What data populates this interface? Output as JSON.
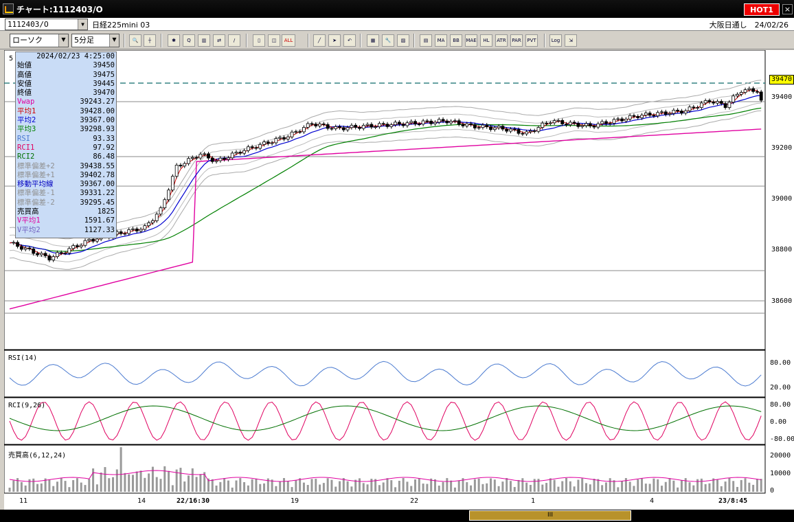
{
  "window": {
    "title": "チャート:1112403/O",
    "hot_label": "HOT1",
    "close_label": "×"
  },
  "symbol": {
    "code": "1112403/O",
    "instrument": "日経225mini 03",
    "exchange_date": "大阪日通し　24/02/26"
  },
  "toolbar": {
    "chart_type": "ローソク",
    "period": "5分足",
    "buttons": [
      "MA",
      "BB",
      "MAE",
      "HL",
      "ATR",
      "PAR",
      "PVT",
      "Log"
    ]
  },
  "info": {
    "datetime": "2024/02/23  4:25:00",
    "rows": [
      {
        "label": "始値",
        "value": "39450",
        "color": "#000"
      },
      {
        "label": "高値",
        "value": "39475",
        "color": "#000"
      },
      {
        "label": "安値",
        "value": "39445",
        "color": "#000"
      },
      {
        "label": "終値",
        "value": "39470",
        "color": "#000"
      },
      {
        "label": "Vwap",
        "value": "39243.27",
        "color": "#e000a0"
      },
      {
        "label": "平均1",
        "value": "39428.00",
        "color": "#d00000"
      },
      {
        "label": "平均2",
        "value": "39367.00",
        "color": "#0000d0"
      },
      {
        "label": "平均3",
        "value": "39298.93",
        "color": "#008000"
      },
      {
        "label": "RSI",
        "value": "93.33",
        "color": "#4a7ad0"
      },
      {
        "label": "RCI1",
        "value": "97.92",
        "color": "#e00060"
      },
      {
        "label": "RCI2",
        "value": "86.48",
        "color": "#007000"
      },
      {
        "label": "標準偏差+2",
        "value": "39438.55",
        "color": "#909090"
      },
      {
        "label": "標準偏差+1",
        "value": "39402.78",
        "color": "#909090"
      },
      {
        "label": "移動平均線",
        "value": "39367.00",
        "color": "#0000c0"
      },
      {
        "label": "標準偏差-1",
        "value": "39331.22",
        "color": "#909090"
      },
      {
        "label": "標準偏差-2",
        "value": "39295.45",
        "color": "#909090"
      },
      {
        "label": "売買高",
        "value": "1825",
        "color": "#000"
      },
      {
        "label": "V平均1",
        "value": "1591.67",
        "color": "#e000a0"
      },
      {
        "label": "V平均2",
        "value": "1127.33",
        "color": "#7060c0"
      }
    ]
  },
  "price_axis": {
    "labels": [
      "39400",
      "39200",
      "39000",
      "38800",
      "38600"
    ],
    "current": "39470"
  },
  "rsi_panel": {
    "title": "RSI(14)",
    "labels": [
      "80.00",
      "20.00"
    ]
  },
  "rci_panel": {
    "title": "RCI(9,26)",
    "labels": [
      "80.00",
      "0.00",
      "-80.00"
    ]
  },
  "vol_panel": {
    "title": "売買高(6,12,24)",
    "labels": [
      "20000",
      "10000",
      "0"
    ]
  },
  "x_axis": [
    "11",
    "14",
    "22/16:30",
    "19",
    "22",
    "1",
    "4",
    "23/8:45"
  ],
  "panel_tag": "5",
  "scroll_thumb": "III",
  "colors": {
    "ma_short": "#d00000",
    "ma_mid": "#0000d0",
    "ma_long": "#008000",
    "vwap": "#e000a0",
    "rsi": "#4a7ad0",
    "rci_fast": "#e00060",
    "rci_slow": "#007000",
    "dash": "#0a6a6a",
    "badge": "#ffff00"
  }
}
